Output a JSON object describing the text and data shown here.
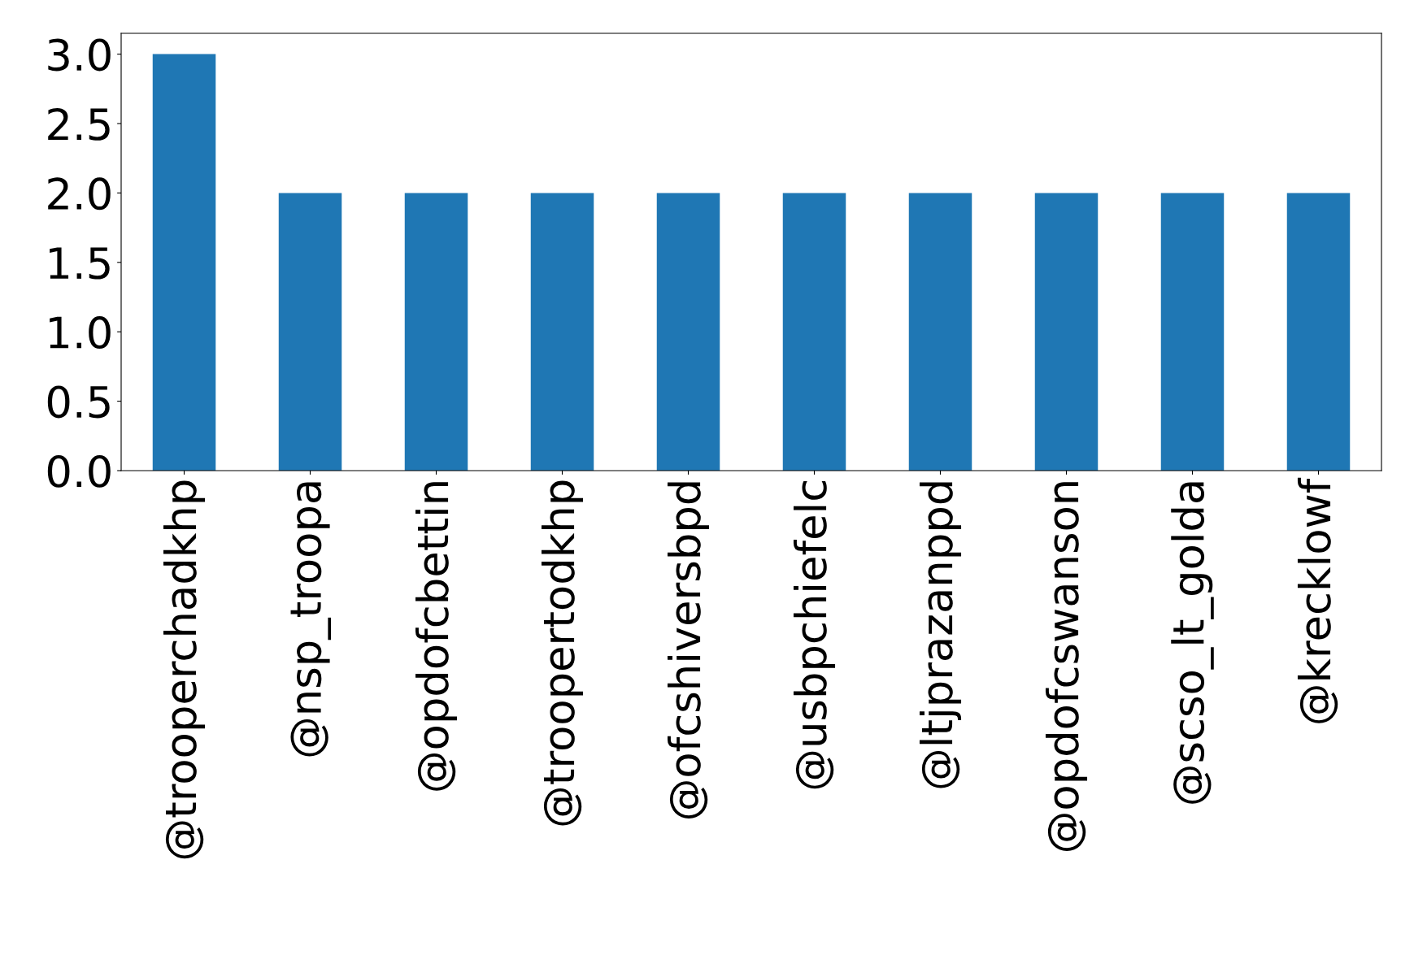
{
  "chart_data": {
    "type": "bar",
    "categories": [
      "@trooperchadkhp",
      "@nsp_troopa",
      "@opdofcbettin",
      "@troopertodkhp",
      "@ofcshiversbpd",
      "@usbpchiefelc",
      "@ltjprazanppd",
      "@opdofcswanson",
      "@scso_lt_golda",
      "@krecklowf"
    ],
    "values": [
      3,
      2,
      2,
      2,
      2,
      2,
      2,
      2,
      2,
      2
    ],
    "color": "#1f77b4",
    "ylim": [
      0,
      3.15
    ],
    "yticks": [
      {
        "value": 0,
        "label": "0.0"
      },
      {
        "value": 0.5,
        "label": "0.5"
      },
      {
        "value": 1,
        "label": "1.0"
      },
      {
        "value": 1.5,
        "label": "1.5"
      },
      {
        "value": 2,
        "label": "2.0"
      },
      {
        "value": 2.5,
        "label": "2.5"
      },
      {
        "value": 3,
        "label": "3.0"
      }
    ],
    "grid": false,
    "legend": false
  }
}
